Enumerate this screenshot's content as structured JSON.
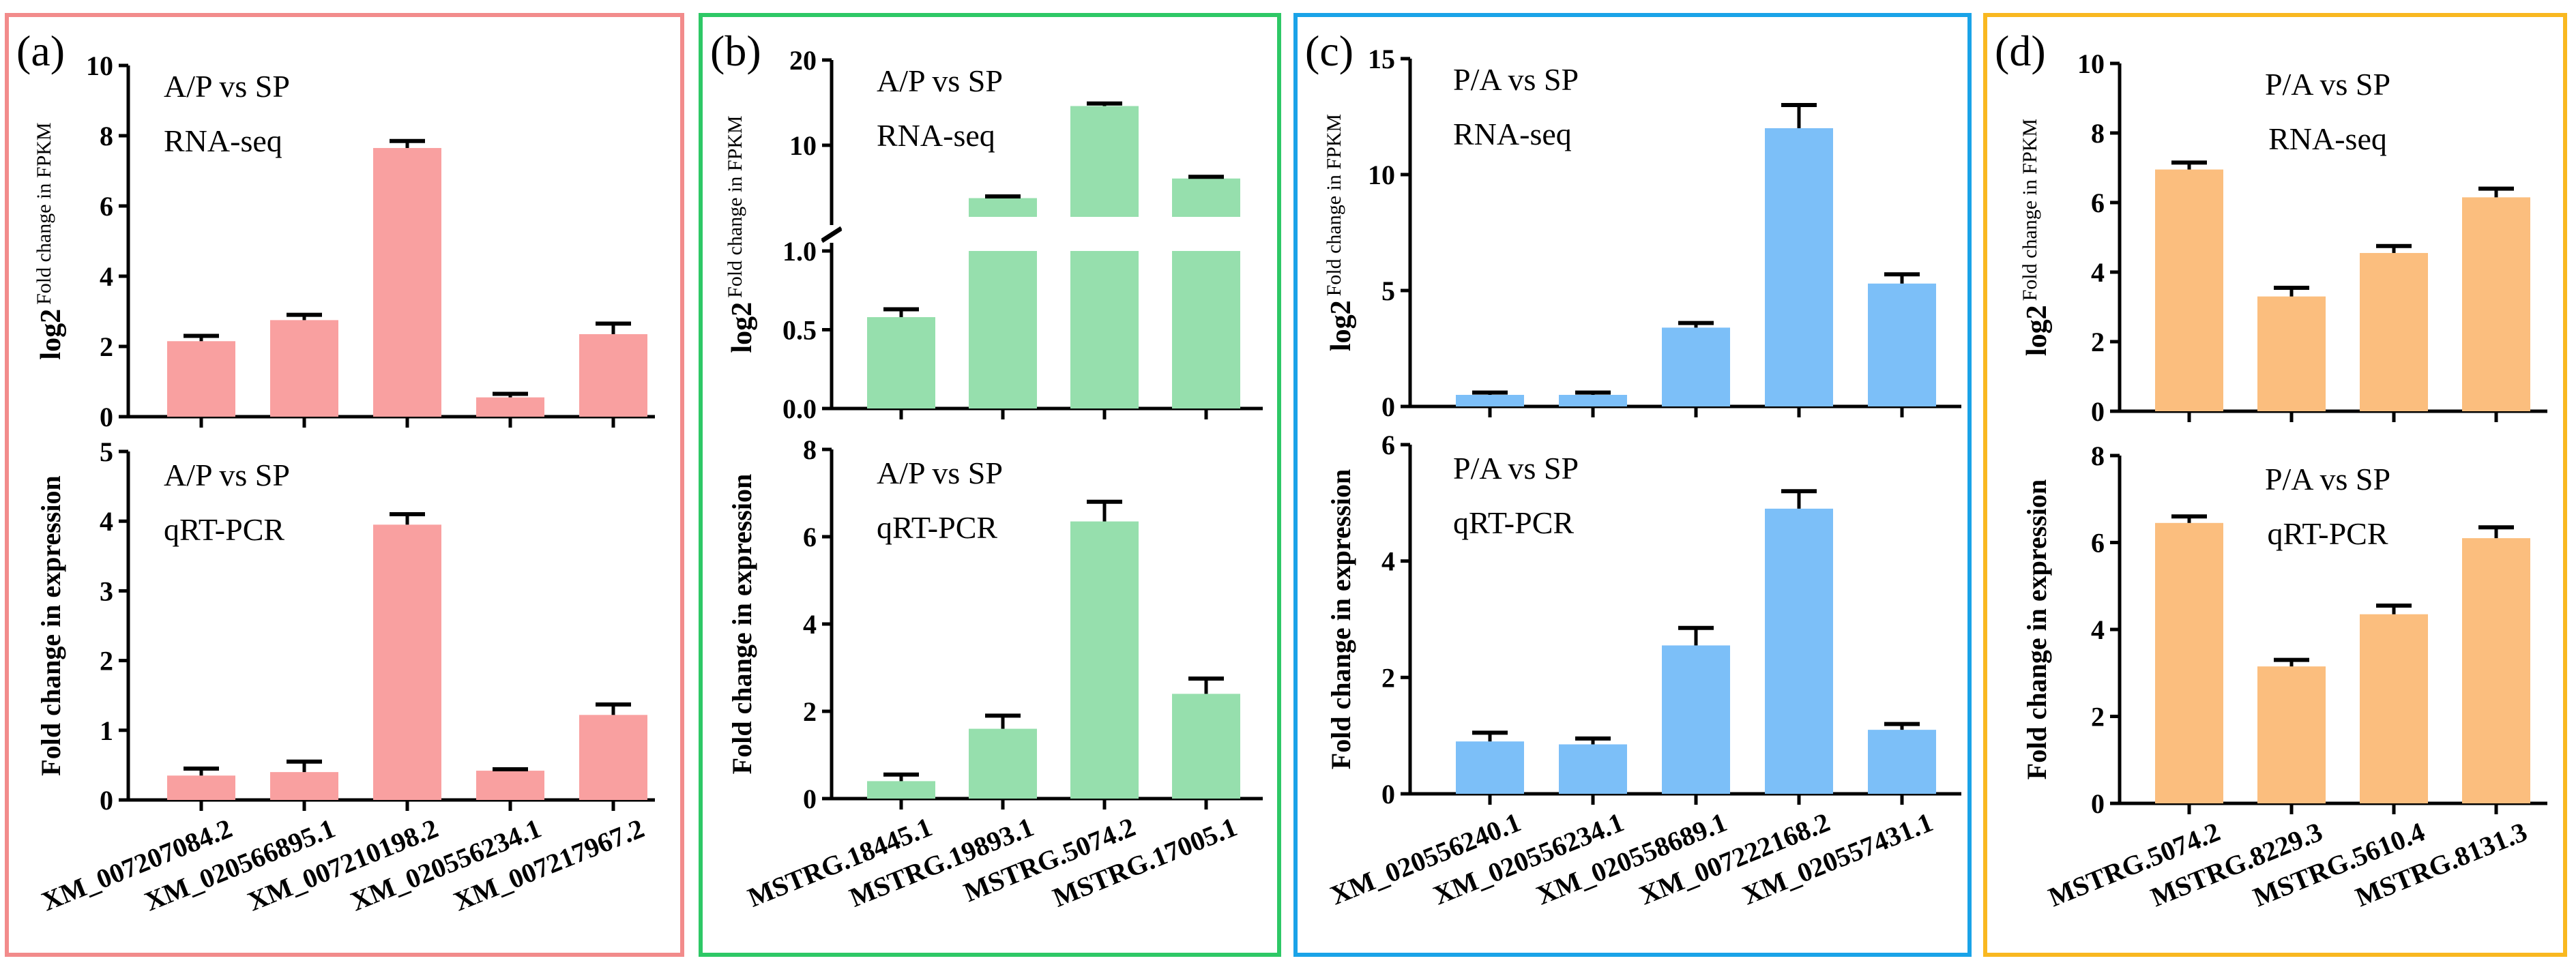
{
  "chart_data": [
    {
      "type": "bar",
      "panel_label": "(a)",
      "bar_color": "#f9a0a0",
      "border_color": "#f28b8b",
      "categories": [
        "XM_007207084.2",
        "XM_020566895.1",
        "XM_007210198.2",
        "XM_020556234.1",
        "XM_007217967.2"
      ],
      "top": {
        "annotation": [
          "A/P vs SP",
          "RNA-seq"
        ],
        "ylabel_prefix": "log2",
        "ylabel": "Fold change in FPKM",
        "ylim": [
          0,
          10
        ],
        "yticks": [
          0,
          2,
          4,
          6,
          8,
          10
        ],
        "tick_labels": [
          "0",
          "2",
          "4",
          "6",
          "8",
          "10"
        ],
        "values": [
          2.15,
          2.75,
          7.65,
          0.55,
          2.35
        ],
        "errors": [
          0.15,
          0.15,
          0.2,
          0.1,
          0.3
        ]
      },
      "bottom": {
        "annotation": [
          "A/P vs SP",
          "qRT-PCR"
        ],
        "ylabel": "Fold change in expression",
        "ylim": [
          0,
          5
        ],
        "yticks": [
          0,
          1,
          2,
          3,
          4,
          5
        ],
        "tick_labels": [
          "0",
          "1",
          "2",
          "3",
          "4",
          "5"
        ],
        "values": [
          0.35,
          0.4,
          3.95,
          0.42,
          1.22
        ],
        "errors": [
          0.1,
          0.15,
          0.15,
          0.02,
          0.15
        ]
      }
    },
    {
      "type": "bar",
      "panel_label": "(b)",
      "bar_color": "#96dfad",
      "border_color": "#2ec866",
      "categories": [
        "MSTRG.18445.1",
        "MSTRG.19893.1",
        "MSTRG.5074.2",
        "MSTRG.17005.1"
      ],
      "top": {
        "annotation": [
          "A/P vs SP",
          "RNA-seq"
        ],
        "ylabel_prefix": "log2",
        "ylabel": "Fold change in FPKM",
        "ylim": [
          0,
          20
        ],
        "axis_break": [
          1,
          1.6
        ],
        "yticks": [
          0,
          0.5,
          1,
          10,
          20
        ],
        "tick_labels": [
          "0.0",
          "0.5",
          "1.0",
          "10",
          "20"
        ],
        "values": [
          0.58,
          3.8,
          14.6,
          6.1
        ],
        "errors": [
          0.05,
          0.2,
          0.3,
          0.2
        ]
      },
      "bottom": {
        "annotation": [
          "A/P vs SP",
          "qRT-PCR"
        ],
        "ylabel": "Fold change in expression",
        "ylim": [
          0,
          8
        ],
        "yticks": [
          0,
          2,
          4,
          6,
          8
        ],
        "tick_labels": [
          "0",
          "2",
          "4",
          "6",
          "8"
        ],
        "values": [
          0.4,
          1.6,
          6.35,
          2.4
        ],
        "errors": [
          0.15,
          0.3,
          0.45,
          0.35
        ]
      }
    },
    {
      "type": "bar",
      "panel_label": "(c)",
      "bar_color": "#7cbff8",
      "border_color": "#1aa3e8",
      "categories": [
        "XM_020556240.1",
        "XM_020556234.1",
        "XM_020558689.1",
        "XM_007222168.2",
        "XM_020557431.1"
      ],
      "top": {
        "annotation": [
          "P/A vs SP",
          "RNA-seq"
        ],
        "ylabel_prefix": "log2",
        "ylabel": "Fold change in FPKM",
        "ylim": [
          0,
          15
        ],
        "yticks": [
          0,
          5,
          10,
          15
        ],
        "tick_labels": [
          "0",
          "5",
          "10",
          "15"
        ],
        "values": [
          0.5,
          0.5,
          3.4,
          12.0,
          5.3
        ],
        "errors": [
          0.1,
          0.1,
          0.2,
          1.0,
          0.4
        ]
      },
      "bottom": {
        "annotation": [
          "P/A vs SP",
          "qRT-PCR"
        ],
        "ylabel": "Fold change in expression",
        "ylim": [
          0,
          6
        ],
        "yticks": [
          0,
          2,
          4,
          6
        ],
        "tick_labels": [
          "0",
          "2",
          "4",
          "6"
        ],
        "values": [
          0.9,
          0.85,
          2.55,
          4.9,
          1.1
        ],
        "errors": [
          0.15,
          0.1,
          0.3,
          0.3,
          0.1
        ]
      }
    },
    {
      "type": "bar",
      "panel_label": "(d)",
      "bar_color": "#fbbe7e",
      "border_color": "#f9b820",
      "categories": [
        "MSTRG.5074.2",
        "MSTRG.8229.3",
        "MSTRG.5610.4",
        "MSTRG.8131.3"
      ],
      "top": {
        "annotation": [
          "P/A vs SP",
          "RNA-seq"
        ],
        "ylabel_prefix": "log2",
        "ylabel": "Fold change in FPKM",
        "ylim": [
          0,
          10
        ],
        "yticks": [
          0,
          2,
          4,
          6,
          8,
          10
        ],
        "tick_labels": [
          "0",
          "2",
          "4",
          "6",
          "8",
          "10"
        ],
        "values": [
          6.95,
          3.3,
          4.55,
          6.15
        ],
        "errors": [
          0.2,
          0.25,
          0.2,
          0.25
        ]
      },
      "bottom": {
        "annotation": [
          "P/A vs SP",
          "qRT-PCR"
        ],
        "ylabel": "Fold change in expression",
        "ylim": [
          0,
          8
        ],
        "yticks": [
          0,
          2,
          4,
          6,
          8
        ],
        "tick_labels": [
          "0",
          "2",
          "4",
          "6",
          "8"
        ],
        "values": [
          6.45,
          3.15,
          4.35,
          6.1
        ],
        "errors": [
          0.15,
          0.15,
          0.2,
          0.25
        ]
      }
    }
  ]
}
